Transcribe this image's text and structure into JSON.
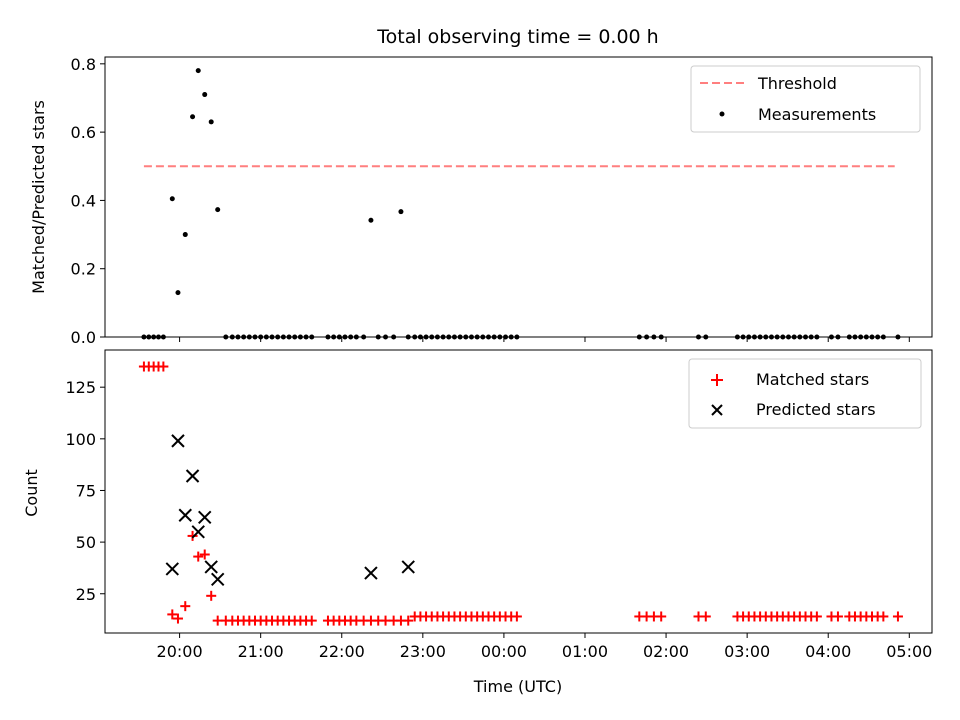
{
  "chart_data": {
    "type": "scatter",
    "title": "Total observing time = 0.00 h",
    "xlabel": "Time (UTC)",
    "x_unit": "hours from 20:00 UTC",
    "xlim": [
      -0.92,
      9.28
    ],
    "xticks": [
      {
        "value": 0,
        "label": "20:00"
      },
      {
        "value": 1,
        "label": "21:00"
      },
      {
        "value": 2,
        "label": "22:00"
      },
      {
        "value": 3,
        "label": "23:00"
      },
      {
        "value": 4,
        "label": "00:00"
      },
      {
        "value": 5,
        "label": "01:00"
      },
      {
        "value": 6,
        "label": "02:00"
      },
      {
        "value": 7,
        "label": "03:00"
      },
      {
        "value": 8,
        "label": "04:00"
      },
      {
        "value": 9,
        "label": "05:00"
      }
    ],
    "panels": [
      {
        "ylabel": "Matched/Predicted stars",
        "ylim": [
          0,
          0.82
        ],
        "yticks": [
          {
            "value": 0.0,
            "label": "0.0"
          },
          {
            "value": 0.2,
            "label": "0.2"
          },
          {
            "value": 0.4,
            "label": "0.4"
          },
          {
            "value": 0.6,
            "label": "0.6"
          },
          {
            "value": 0.8,
            "label": "0.8"
          }
        ],
        "legend": "top-right",
        "threshold": {
          "name": "Threshold",
          "value": 0.5,
          "x_range": [
            -0.44,
            8.82
          ],
          "color": "#ff7f7f"
        },
        "series": [
          {
            "name": "Measurements",
            "marker": "dot",
            "color": "#000000",
            "x": [
              -0.44,
              -0.38,
              -0.32,
              -0.26,
              -0.2,
              -0.09,
              -0.02,
              0.07,
              0.16,
              0.23,
              0.31,
              0.39,
              0.47,
              0.57,
              0.65,
              0.72,
              0.79,
              0.86,
              0.93,
              1.0,
              1.07,
              1.14,
              1.21,
              1.28,
              1.35,
              1.42,
              1.49,
              1.56,
              1.63,
              1.83,
              1.9,
              1.97,
              2.04,
              2.11,
              2.18,
              2.27,
              2.36,
              2.45,
              2.54,
              2.64,
              2.73,
              2.82,
              2.9,
              2.97,
              3.04,
              3.11,
              3.18,
              3.25,
              3.32,
              3.39,
              3.46,
              3.53,
              3.6,
              3.67,
              3.74,
              3.81,
              3.88,
              3.95,
              4.02,
              4.09,
              4.16,
              5.67,
              5.76,
              5.85,
              5.94,
              6.4,
              6.49,
              6.88,
              6.95,
              7.02,
              7.09,
              7.16,
              7.23,
              7.3,
              7.37,
              7.44,
              7.51,
              7.58,
              7.65,
              7.72,
              7.79,
              7.86,
              8.04,
              8.12,
              8.26,
              8.33,
              8.4,
              8.47,
              8.54,
              8.61,
              8.68,
              8.86
            ],
            "y": [
              0,
              0,
              0,
              0,
              0,
              0.405,
              0.13,
              0.3,
              0.645,
              0.78,
              0.71,
              0.63,
              0.373,
              0,
              0,
              0,
              0,
              0,
              0,
              0,
              0,
              0,
              0,
              0,
              0,
              0,
              0,
              0,
              0,
              0,
              0,
              0,
              0,
              0,
              0,
              0,
              0.342,
              0,
              0,
              0,
              0.367,
              0,
              0,
              0,
              0,
              0,
              0,
              0,
              0,
              0,
              0,
              0,
              0,
              0,
              0,
              0,
              0,
              0,
              0,
              0,
              0,
              0,
              0,
              0,
              0,
              0,
              0,
              0,
              0,
              0,
              0,
              0,
              0,
              0,
              0,
              0,
              0,
              0,
              0,
              0,
              0,
              0,
              0,
              0,
              0,
              0,
              0,
              0,
              0,
              0,
              0,
              0
            ]
          }
        ]
      },
      {
        "ylabel": "Count",
        "ylim": [
          6,
          143
        ],
        "yticks": [
          {
            "value": 25,
            "label": "25"
          },
          {
            "value": 50,
            "label": "50"
          },
          {
            "value": 75,
            "label": "75"
          },
          {
            "value": 100,
            "label": "100"
          },
          {
            "value": 125,
            "label": "125"
          }
        ],
        "legend": "top-right",
        "series": [
          {
            "name": "Matched stars",
            "marker": "plus",
            "color": "#ff0000",
            "x": [
              -0.44,
              -0.38,
              -0.32,
              -0.26,
              -0.2,
              -0.09,
              -0.02,
              0.07,
              0.16,
              0.23,
              0.31,
              0.39,
              0.47,
              0.57,
              0.65,
              0.72,
              0.79,
              0.86,
              0.93,
              1.0,
              1.07,
              1.14,
              1.21,
              1.28,
              1.35,
              1.42,
              1.49,
              1.56,
              1.63,
              1.83,
              1.9,
              1.97,
              2.04,
              2.11,
              2.18,
              2.27,
              2.36,
              2.45,
              2.54,
              2.64,
              2.73,
              2.82,
              2.9,
              2.97,
              3.04,
              3.11,
              3.18,
              3.25,
              3.32,
              3.39,
              3.46,
              3.53,
              3.6,
              3.67,
              3.74,
              3.81,
              3.88,
              3.95,
              4.02,
              4.09,
              4.16,
              5.67,
              5.76,
              5.85,
              5.94,
              6.4,
              6.49,
              6.88,
              6.95,
              7.02,
              7.09,
              7.16,
              7.23,
              7.3,
              7.37,
              7.44,
              7.51,
              7.58,
              7.65,
              7.72,
              7.79,
              7.86,
              8.04,
              8.12,
              8.26,
              8.33,
              8.4,
              8.47,
              8.54,
              8.61,
              8.68,
              8.86
            ],
            "y": [
              135,
              135,
              135,
              135,
              135,
              15,
              13,
              19,
              53,
              43,
              44,
              24,
              12,
              12,
              12,
              12,
              12,
              12,
              12,
              12,
              12,
              12,
              12,
              12,
              12,
              12,
              12,
              12,
              12,
              12,
              12,
              12,
              12,
              12,
              12,
              12,
              12,
              12,
              12,
              12,
              12,
              12,
              14,
              14,
              14,
              14,
              14,
              14,
              14,
              14,
              14,
              14,
              14,
              14,
              14,
              14,
              14,
              14,
              14,
              14,
              14,
              14,
              14,
              14,
              14,
              14,
              14,
              14,
              14,
              14,
              14,
              14,
              14,
              14,
              14,
              14,
              14,
              14,
              14,
              14,
              14,
              14,
              14,
              14,
              14,
              14,
              14,
              14,
              14,
              14,
              14,
              14
            ]
          },
          {
            "name": "Predicted stars",
            "marker": "x",
            "color": "#000000",
            "x": [
              -0.09,
              -0.02,
              0.07,
              0.16,
              0.23,
              0.31,
              0.39,
              0.47,
              2.36,
              2.82
            ],
            "y": [
              37,
              99,
              63,
              82,
              55,
              62,
              38,
              32,
              35,
              38
            ]
          }
        ]
      }
    ]
  }
}
